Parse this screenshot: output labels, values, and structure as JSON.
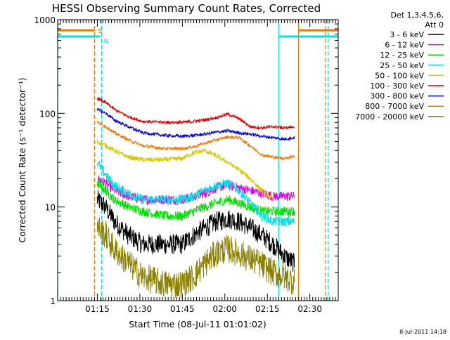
{
  "chart_data": {
    "type": "line",
    "title": "HESSI Observing Summary Count Rates, Corrected",
    "xlabel": "Start Time (08-Jul-11 01:01:02)",
    "ylabel": "Corrected Count Rate (s⁻¹ detector⁻¹)",
    "yscale": "log",
    "ylim": [
      1,
      1000
    ],
    "xlim_minutes": [
      0,
      99
    ],
    "x_unit": "minutes after 01:01:02",
    "x_ticks": [
      {
        "label": "01:15",
        "minutes": 14
      },
      {
        "label": "01:30",
        "minutes": 29
      },
      {
        "label": "01:45",
        "minutes": 44
      },
      {
        "label": "02:00",
        "minutes": 59
      },
      {
        "label": "02:15",
        "minutes": 74
      },
      {
        "label": "02:30",
        "minutes": 89
      }
    ],
    "y_ticks": [
      {
        "label": "1",
        "value": 1
      },
      {
        "label": "10",
        "value": 10
      },
      {
        "label": "100",
        "value": 100
      },
      {
        "label": "1000",
        "value": 1000
      }
    ],
    "legend": {
      "position": "right",
      "header": [
        "Det 1,3,4,5,6,",
        "Att 0"
      ]
    },
    "series": [
      {
        "name": "3 - 6 keV",
        "color": "#000000",
        "noise": 0.25,
        "clip": true,
        "x": [
          14,
          17,
          20,
          25,
          30,
          38,
          44,
          48,
          52,
          56,
          60,
          64,
          68,
          72,
          76,
          80,
          83.5
        ],
        "y": [
          12,
          10,
          7,
          5,
          4,
          4,
          4,
          5,
          6,
          7,
          7.5,
          7,
          6,
          5,
          4,
          3,
          2.5
        ]
      },
      {
        "name": "6 - 12 keV",
        "color": "#e000e0",
        "noise": 0.12,
        "clip": false,
        "x": [
          14,
          17,
          20,
          25,
          30,
          38,
          44,
          48,
          52,
          56,
          60,
          64,
          68,
          72,
          76,
          80,
          83.5
        ],
        "y": [
          20,
          18,
          15,
          13,
          12,
          12,
          12,
          13,
          14,
          16,
          17,
          16,
          15,
          14,
          13,
          13,
          13
        ]
      },
      {
        "name": "12 - 25 keV",
        "color": "#00e000",
        "noise": 0.12,
        "clip": false,
        "x": [
          14,
          17,
          20,
          25,
          30,
          38,
          44,
          48,
          52,
          56,
          60,
          64,
          68,
          72,
          76,
          80,
          83.5
        ],
        "y": [
          18,
          15,
          12,
          10,
          9,
          8,
          8,
          9,
          10,
          11,
          12,
          11,
          10,
          9,
          9,
          9,
          9
        ]
      },
      {
        "name": "25 - 50 keV",
        "color": "#00e0e0",
        "noise": 0.12,
        "clip": false,
        "x": [
          14,
          17,
          20,
          25,
          30,
          38,
          44,
          48,
          52,
          56,
          60,
          64,
          68,
          72,
          76,
          80,
          83.5
        ],
        "y": [
          30,
          22,
          17,
          14,
          12,
          12,
          12,
          13,
          15,
          17,
          18,
          15,
          11,
          8,
          7,
          7,
          7
        ]
      },
      {
        "name": "50 - 100 keV",
        "color": "#d4c800",
        "noise": 0.06,
        "clip": false,
        "x": [
          14,
          17,
          20,
          25,
          30,
          38,
          44,
          48,
          52,
          56,
          60,
          64,
          68,
          72,
          76
        ],
        "y": [
          50,
          45,
          40,
          34,
          32,
          32,
          33,
          38,
          40,
          35,
          30,
          25,
          20,
          15,
          12
        ]
      },
      {
        "name": "100 - 300 keV",
        "color": "#e00000",
        "noise": 0.04,
        "clip": false,
        "x": [
          14,
          17,
          20,
          25,
          30,
          38,
          44,
          48,
          52,
          56,
          60,
          64,
          68,
          72,
          76,
          80,
          83.5
        ],
        "y": [
          145,
          130,
          110,
          92,
          82,
          80,
          80,
          82,
          85,
          90,
          98,
          88,
          72,
          70,
          72,
          70,
          72
        ]
      },
      {
        "name": "300 - 800 keV",
        "color": "#0000e0",
        "noise": 0.04,
        "clip": false,
        "x": [
          14,
          17,
          20,
          25,
          30,
          38,
          44,
          48,
          52,
          56,
          60,
          64,
          68,
          72,
          76,
          80,
          83.5
        ],
        "y": [
          110,
          100,
          85,
          72,
          62,
          58,
          57,
          58,
          60,
          63,
          65,
          62,
          60,
          57,
          55,
          53,
          55
        ]
      },
      {
        "name": "800 - 7000 keV",
        "color": "#f07800",
        "noise": 0.04,
        "clip": false,
        "x": [
          14,
          17,
          20,
          25,
          30,
          38,
          44,
          48,
          52,
          56,
          60,
          64,
          68,
          72,
          76,
          80,
          83.5
        ],
        "y": [
          80,
          72,
          62,
          52,
          45,
          42,
          42,
          44,
          48,
          52,
          56,
          55,
          45,
          36,
          34,
          33,
          35
        ]
      },
      {
        "name": "7000 - 20000 keV",
        "color": "#8c8200",
        "noise": 0.35,
        "clip": true,
        "x": [
          14,
          17,
          20,
          25,
          30,
          38,
          44,
          48,
          52,
          56,
          60,
          64,
          68,
          72,
          76,
          80,
          83.5
        ],
        "y": [
          6,
          5,
          3.5,
          2.5,
          1.8,
          1.5,
          1.5,
          1.8,
          2.5,
          3.2,
          3.6,
          3.2,
          2.8,
          2.4,
          2.0,
          1.8,
          1.6
        ]
      }
    ],
    "flag_bars": [
      {
        "label": "S",
        "color": "#f07800",
        "y": 770,
        "segments": [
          [
            0,
            13
          ],
          [
            85,
            99
          ]
        ]
      },
      {
        "label": "N",
        "color": "#00e0e0",
        "y": 660,
        "segments": [
          [
            0,
            15
          ],
          [
            78,
            99
          ]
        ]
      }
    ],
    "vlines": [
      {
        "minutes": 0,
        "color": "#00e0e0",
        "style": "solid"
      },
      {
        "minutes": 13,
        "color": "#f07800",
        "style": "dashed"
      },
      {
        "minutes": 15.5,
        "color": "#00e0e0",
        "style": "dashed"
      },
      {
        "minutes": 78,
        "color": "#00e0e0",
        "style": "solid"
      },
      {
        "minutes": 85,
        "color": "#f07800",
        "style": "solid"
      },
      {
        "minutes": 94.5,
        "color": "#f07800",
        "style": "dashed"
      },
      {
        "minutes": 95.5,
        "color": "#00e0e0",
        "style": "dashed"
      }
    ],
    "timestamp": "8-Jul-2011 14:18"
  }
}
